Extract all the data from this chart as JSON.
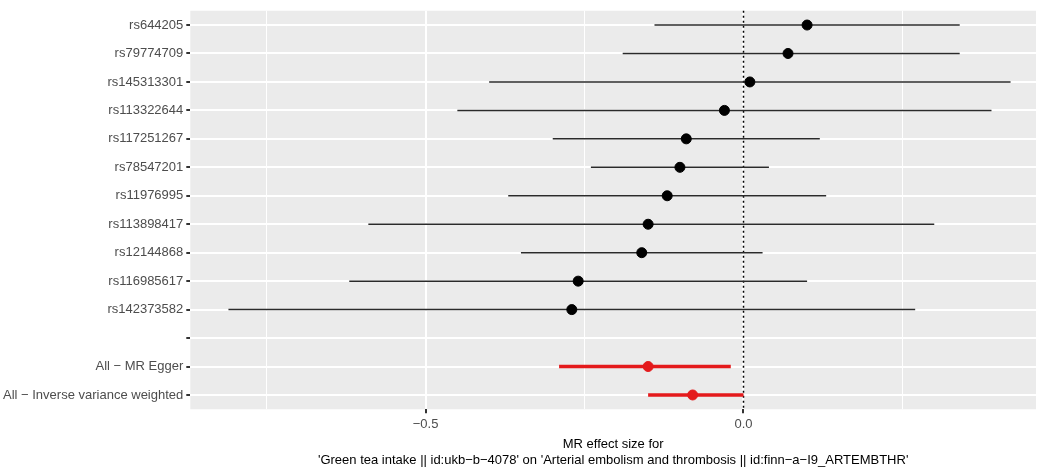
{
  "chart_data": {
    "type": "scatter",
    "orientation": "horizontal",
    "categories": [
      "rs644205",
      "rs79774709",
      "rs145313301",
      "rs113322644",
      "rs117251267",
      "rs78547201",
      "rs11976995",
      "rs113898417",
      "rs12144868",
      "rs116985617",
      "rs142373582",
      null,
      "All − MR Egger",
      "All − Inverse variance weighted"
    ],
    "series": [
      {
        "color": "#000000",
        "values": [
          0.1,
          0.07,
          0.01,
          -0.03,
          -0.09,
          -0.1,
          -0.12,
          -0.15,
          -0.16,
          -0.26,
          -0.27,
          null,
          null,
          null
        ],
        "errors": [
          [
            -0.14,
            0.34
          ],
          [
            -0.19,
            0.34
          ],
          [
            -0.4,
            0.42
          ],
          [
            -0.45,
            0.39
          ],
          [
            -0.3,
            0.12
          ],
          [
            -0.24,
            0.04
          ],
          [
            -0.37,
            0.13
          ],
          [
            -0.59,
            0.3
          ],
          [
            -0.35,
            0.03
          ],
          [
            -0.62,
            0.1
          ],
          [
            -0.81,
            0.27
          ],
          null,
          null,
          null
        ]
      },
      {
        "color": "#e41a1c",
        "values": [
          null,
          null,
          null,
          null,
          null,
          null,
          null,
          null,
          null,
          null,
          null,
          null,
          -0.15,
          -0.08
        ],
        "errors": [
          null,
          null,
          null,
          null,
          null,
          null,
          null,
          null,
          null,
          null,
          null,
          null,
          [
            -0.29,
            -0.02
          ],
          [
            -0.15,
            0.0
          ]
        ]
      }
    ],
    "xlim": [
      -0.87,
      0.46
    ],
    "xticks": [
      {
        "value": -0.75,
        "label": null
      },
      {
        "value": -0.5,
        "label": "−0.5"
      },
      {
        "value": -0.25,
        "label": null
      },
      {
        "value": 0,
        "label": "0.0"
      },
      {
        "value": 0.25,
        "label": null
      }
    ],
    "xlabel": "MR effect size for\n'Green tea intake || id:ukb−b−4078' on 'Arterial embolism and thrombosis || id:finn−a−I9_ARTEMBTHR'",
    "ref_lines": [
      {
        "axis": "x",
        "value": 0,
        "line_style": "dotted",
        "color": "#000000"
      }
    ],
    "grid": true,
    "legend": false,
    "marker": "circle"
  }
}
